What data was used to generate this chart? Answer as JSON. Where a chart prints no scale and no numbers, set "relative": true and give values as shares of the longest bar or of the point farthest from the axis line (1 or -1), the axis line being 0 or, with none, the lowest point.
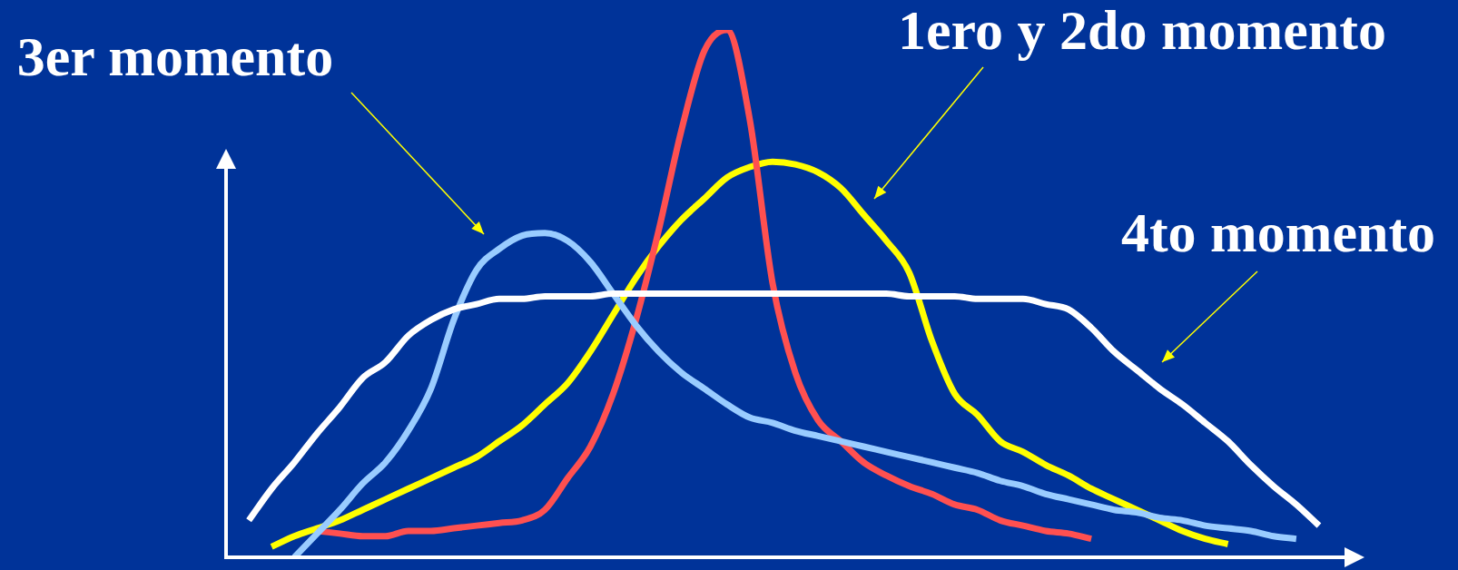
{
  "chart_data": {
    "type": "line",
    "relative": true,
    "line_style": "solid",
    "categories": [
      null,
      null,
      null,
      null,
      null,
      null,
      null,
      null,
      null,
      null,
      null,
      null,
      null,
      null,
      null,
      null,
      null,
      null,
      null,
      null,
      null,
      null,
      null,
      null,
      null,
      null,
      null,
      null,
      null,
      null,
      null,
      null,
      null,
      null,
      null,
      null,
      null,
      null,
      null,
      null,
      null,
      null,
      null,
      null,
      null,
      null,
      null,
      null,
      null,
      null
    ],
    "series": [
      {
        "color": "#ffffff",
        "values": [
          null,
          0.07,
          0.13,
          0.18,
          0.235,
          0.285,
          0.34,
          0.37,
          0.42,
          0.45,
          0.47,
          0.48,
          0.49,
          0.49,
          0.495,
          0.495,
          0.495,
          0.5,
          0.5,
          0.5,
          0.5,
          0.5,
          0.5,
          0.5,
          0.5,
          0.5,
          0.5,
          0.5,
          0.5,
          0.5,
          0.495,
          0.495,
          0.495,
          0.49,
          0.49,
          0.49,
          0.48,
          0.47,
          0.435,
          0.39,
          0.355,
          0.32,
          0.29,
          0.255,
          0.22,
          0.175,
          0.135,
          0.1,
          0.06,
          null
        ]
      },
      {
        "color": "#99ccff",
        "values": [
          null,
          null,
          null,
          0,
          0.045,
          0.09,
          0.14,
          0.18,
          0.24,
          0.32,
          0.45,
          0.545,
          0.585,
          0.61,
          0.615,
          0.6,
          0.56,
          0.5,
          0.44,
          0.39,
          0.35,
          0.32,
          0.29,
          0.265,
          0.255,
          0.24,
          0.23,
          0.22,
          0.21,
          0.2,
          0.19,
          0.18,
          0.17,
          0.16,
          0.145,
          0.135,
          0.12,
          0.11,
          0.1,
          0.09,
          0.085,
          0.075,
          0.07,
          0.06,
          0.055,
          0.05,
          0.04,
          0.035,
          null,
          null
        ]
      },
      {
        "color": "#ff5050",
        "values": [
          null,
          null,
          null,
          null,
          0.05,
          0.045,
          0.04,
          0.04,
          0.05,
          0.05,
          0.055,
          0.06,
          0.065,
          0.07,
          0.09,
          0.15,
          0.21,
          0.31,
          0.45,
          0.62,
          0.81,
          0.96,
          1,
          0.83,
          0.52,
          0.35,
          0.26,
          0.22,
          0.18,
          0.155,
          0.135,
          0.12,
          0.1,
          0.09,
          0.07,
          0.06,
          0.05,
          0.045,
          0.035,
          null,
          null,
          null,
          null,
          null,
          null,
          null,
          null,
          null,
          null,
          null
        ]
      },
      {
        "color": "#ffff00",
        "values": [
          null,
          null,
          0.02,
          0.04,
          0.055,
          0.07,
          0.09,
          0.11,
          0.13,
          0.15,
          0.17,
          0.19,
          0.22,
          0.25,
          0.29,
          0.33,
          0.39,
          0.46,
          0.53,
          0.59,
          0.64,
          0.68,
          0.72,
          0.74,
          0.75,
          0.745,
          0.73,
          0.7,
          0.65,
          0.6,
          0.54,
          0.41,
          0.31,
          0.27,
          0.22,
          0.2,
          0.175,
          0.155,
          0.13,
          0.11,
          0.09,
          0.07,
          0.05,
          0.035,
          0.025,
          null,
          null,
          null,
          null,
          null
        ]
      }
    ],
    "annotations": [
      "3er momento",
      "1ero y 2do momento",
      "4to momento"
    ]
  }
}
